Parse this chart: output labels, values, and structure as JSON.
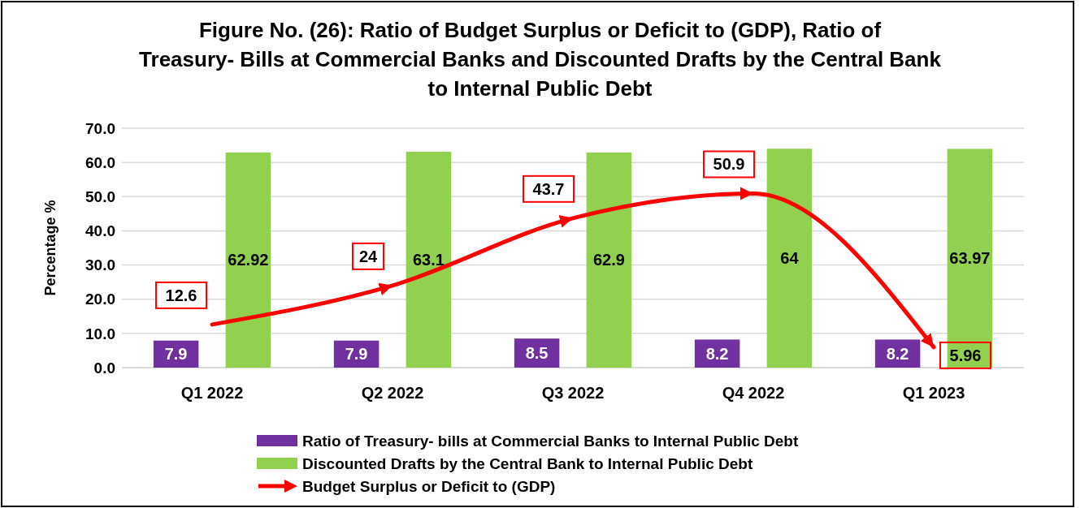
{
  "chart_data": {
    "type": "bar",
    "title": "Figure No. (26): Ratio of Budget Surplus or Deficit to (GDP), Ratio of Treasury- Bills at Commercial Banks and Discounted Drafts by the Central Bank to Internal Public Debt",
    "ylabel": "Percentage %",
    "categories": [
      "Q1 2022",
      "Q2 2022",
      "Q3 2022",
      "Q4 2022",
      "Q1 2023"
    ],
    "series": [
      {
        "name": "Ratio of Treasury- bills at Commercial Banks to Internal Public Debt",
        "color": "#7030a0",
        "values": [
          7.9,
          7.9,
          8.5,
          8.2,
          8.2
        ]
      },
      {
        "name": "Discounted Drafts by the Central Bank to Internal Public Debt",
        "color": "#92d050",
        "values": [
          62.92,
          63.1,
          62.9,
          64,
          63.97
        ]
      },
      {
        "name": "Budget Surplus or Deficit to (GDP)",
        "type": "line",
        "color": "#ff0000",
        "values": [
          12.6,
          24,
          43.7,
          50.9,
          5.96
        ]
      }
    ],
    "ylim": [
      0,
      70
    ],
    "yticks": [
      {
        "value": 0,
        "label": "0.0"
      },
      {
        "value": 10,
        "label": "10.0"
      },
      {
        "value": 20,
        "label": "20.0"
      },
      {
        "value": 30,
        "label": "30.0"
      },
      {
        "value": 40,
        "label": "40.0"
      },
      {
        "value": 50,
        "label": "50.0"
      },
      {
        "value": 60,
        "label": "60.0"
      },
      {
        "value": 70,
        "label": "70.0"
      }
    ],
    "grid": "y",
    "legend": "bottom",
    "data_labels": true
  }
}
